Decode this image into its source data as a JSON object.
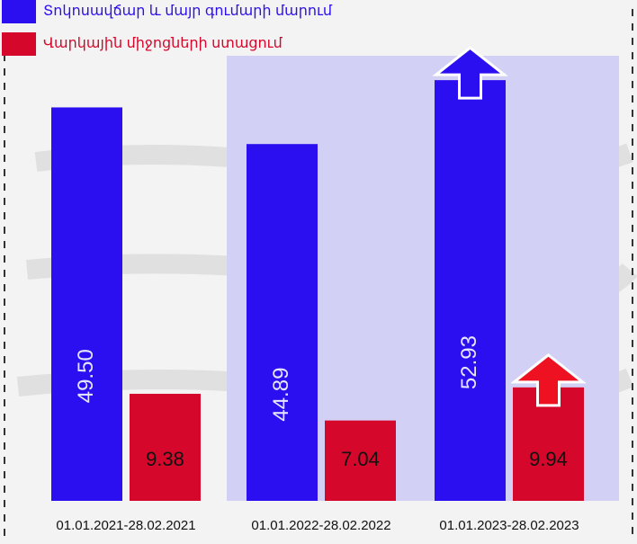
{
  "chart_data": {
    "type": "bar",
    "categories": [
      "01.01.2021-28.02.2021",
      "01.01.2022-28.02.2022",
      "01.01.2023-28.02.2023"
    ],
    "series": [
      {
        "name": "Տոկոսավճար և մայր գումարի մարում",
        "color": "#2c0ff0",
        "values": [
          49.5,
          44.89,
          52.93
        ],
        "value_labels": [
          "49.50",
          "44.89",
          "52.93"
        ]
      },
      {
        "name": "Վարկային միջոցների ստացում",
        "color": "#d5082c",
        "values": [
          9.38,
          7.04,
          9.94
        ],
        "value_labels": [
          "9.38",
          "7.04",
          "9.94"
        ],
        "axis": "y2"
      }
    ],
    "ylim": [
      0,
      56
    ],
    "y2lim": [
      0,
      39
    ]
  }
}
